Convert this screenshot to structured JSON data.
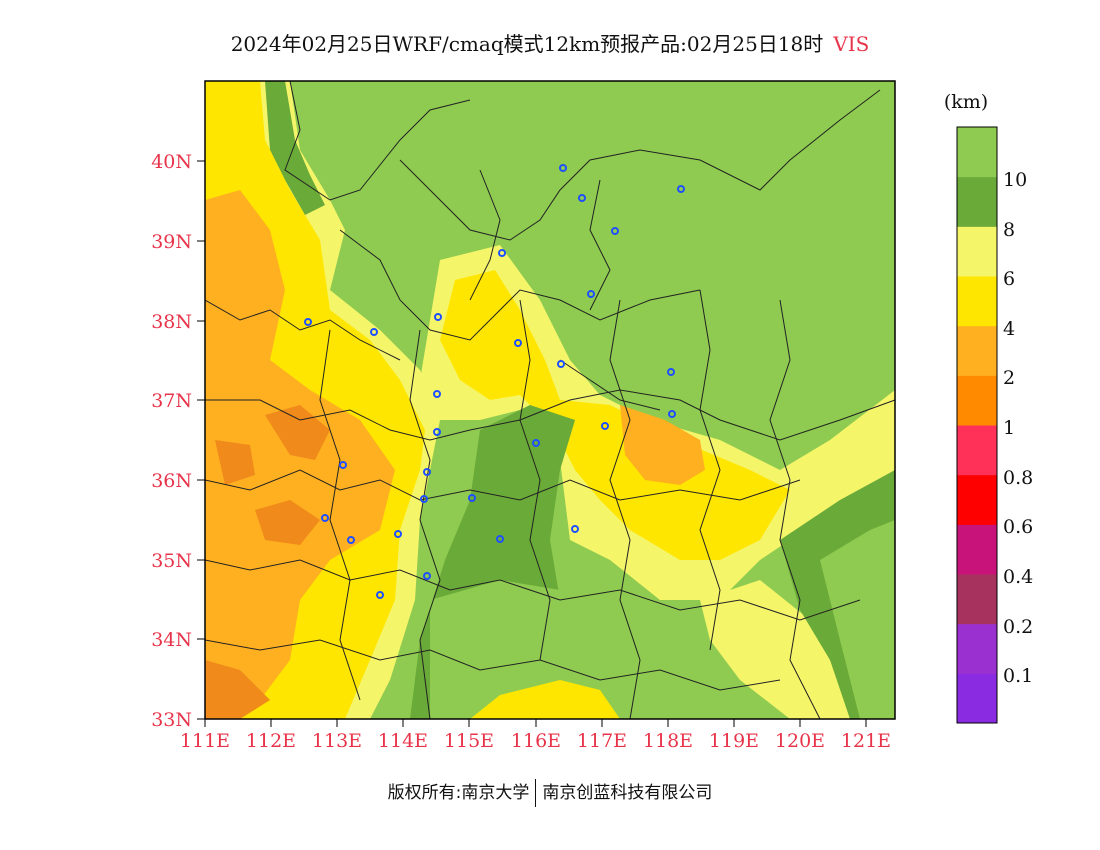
{
  "header": {
    "title": "2024年02月25日WRF/cmaq模式12km预报产品:02月25日18时",
    "variable": "VIS"
  },
  "map": {
    "lon_ticks": [
      "111E",
      "112E",
      "113E",
      "114E",
      "115E",
      "116E",
      "117E",
      "118E",
      "119E",
      "120E",
      "121E"
    ],
    "lat_ticks": [
      "33N",
      "34N",
      "35N",
      "36N",
      "37N",
      "38N",
      "39N",
      "40N"
    ],
    "extent": {
      "lon": [
        111,
        121.4
      ],
      "lat": [
        33,
        41
      ]
    }
  },
  "colorbar": {
    "unit": "(km)",
    "labels": [
      "0.1",
      "0.2",
      "0.4",
      "0.6",
      "0.8",
      "1",
      "2",
      "4",
      "6",
      "8",
      "10"
    ],
    "colors": [
      "#8a2be2",
      "#9b30d0",
      "#a8325e",
      "#c8147a",
      "#ff0000",
      "#ff3158",
      "#ff8a00",
      "#ffb020",
      "#ffe600",
      "#f5f56a",
      "#6aaa38",
      "#8ecb50"
    ]
  },
  "footer": {
    "copyright": "版权所有:南京大学",
    "company": "南京创蓝科技有限公司"
  },
  "chart_data": {
    "type": "heatmap",
    "variable": "VIS",
    "unit": "km",
    "x_ticks": [
      "111E",
      "112E",
      "113E",
      "114E",
      "115E",
      "116E",
      "117E",
      "118E",
      "119E",
      "120E",
      "121E"
    ],
    "y_ticks": [
      "33N",
      "34N",
      "35N",
      "36N",
      "37N",
      "38N",
      "39N",
      "40N"
    ],
    "levels": [
      0.1,
      0.2,
      0.4,
      0.6,
      0.8,
      1,
      2,
      4,
      6,
      8,
      10
    ]
  }
}
